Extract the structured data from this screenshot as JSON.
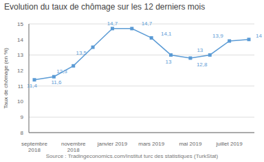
{
  "chart_data": {
    "type": "line",
    "title": "Evolution du taux de chômage sur les 12 derniers mois",
    "y_label": "Taux de chômage (en %)",
    "source": "Source : Tradingeconomics.com/Institut turc des statistiques (TurkStat)",
    "categories": [
      "septembre\n2018",
      null,
      "novembre\n2018",
      null,
      "janvier 2019",
      null,
      "mars 2019",
      null,
      "mai 2019",
      null,
      "juillet 2019",
      null
    ],
    "values": [
      11.4,
      11.6,
      12.3,
      13.5,
      14.7,
      14.7,
      14.1,
      13.0,
      12.8,
      13.0,
      13.9,
      14.0
    ],
    "value_labels": [
      "11,4",
      "11,6",
      "12,3",
      "13,5",
      "14,7",
      "14,7",
      "14,1",
      "13",
      "12,8",
      "13",
      "13,9",
      "14"
    ],
    "color": "#5b9bd5",
    "marker": "square",
    "ylim": [
      8,
      15
    ],
    "yticks": [
      8,
      9,
      10,
      11,
      12,
      13,
      14,
      15
    ],
    "grid": true,
    "data_labels": true
  }
}
